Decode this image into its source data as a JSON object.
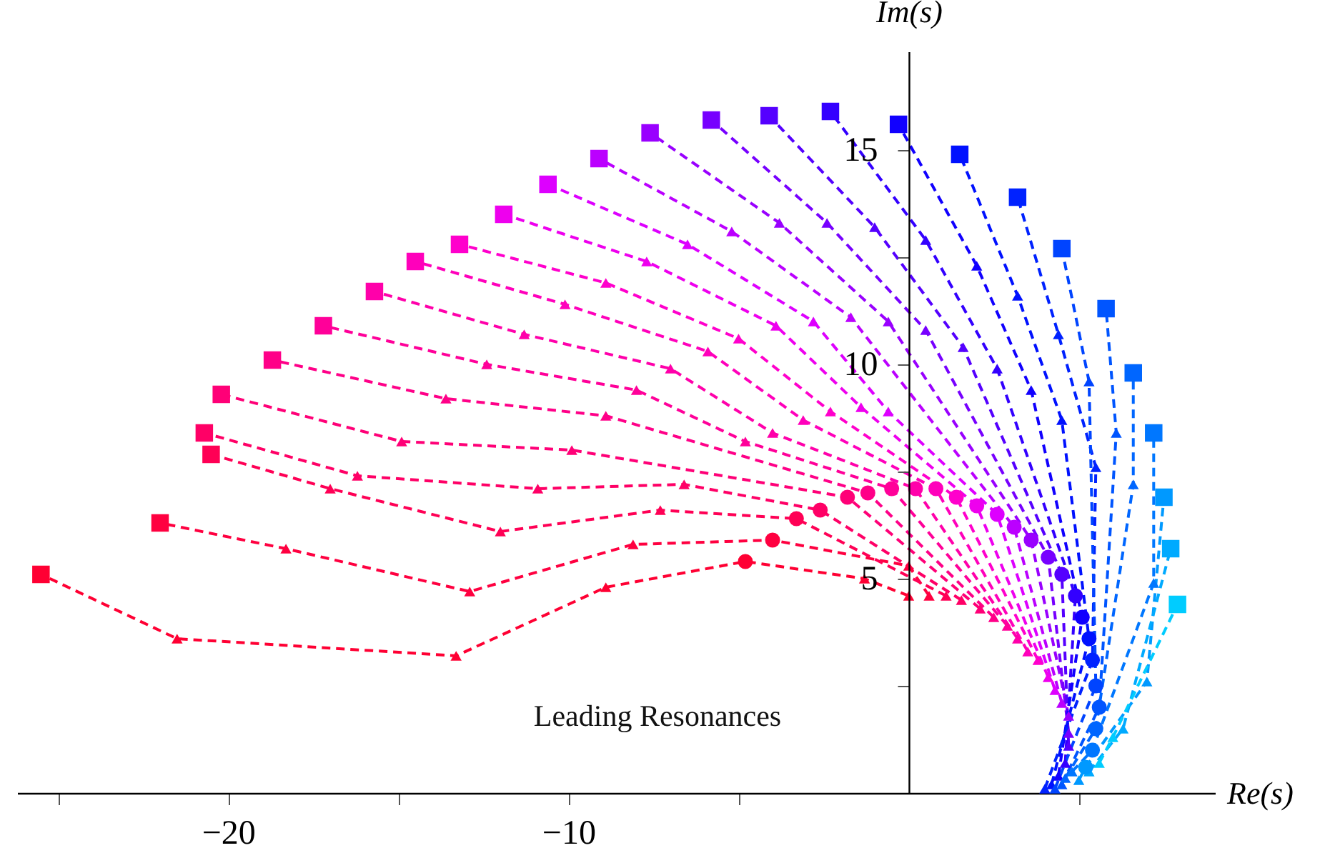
{
  "chart_data": {
    "type": "line",
    "xlabel": "Re(s)",
    "ylabel": "Im(s)",
    "line_style": "dashed",
    "annotations": [
      "Leading Resonances"
    ],
    "xlim": [
      -26.2,
      9.0
    ],
    "ylim": [
      0,
      17.3
    ],
    "xticks": [
      {
        "value": -25,
        "label": null
      },
      {
        "value": -20,
        "label": "−20"
      },
      {
        "value": -15,
        "label": null
      },
      {
        "value": -10,
        "label": "−10"
      },
      {
        "value": -5,
        "label": null
      },
      {
        "value": 5,
        "label": null
      }
    ],
    "yticks": [
      {
        "value": 2.5,
        "label": null
      },
      5,
      {
        "value": 7.5,
        "label": null
      },
      10,
      {
        "value": 12.5,
        "label": null
      },
      15
    ],
    "series": [
      {
        "color": "#ff0033",
        "x": [
          0,
          -1.3,
          -4.8,
          -8.9,
          -13.3,
          -21.5,
          -25.5
        ],
        "values": [
          4.6,
          5.0,
          5.4,
          4.8,
          3.2,
          3.6,
          5.1
        ]
      },
      {
        "color": "#ff0040",
        "x": [
          0.6,
          0,
          -4.0,
          -8.1,
          -12.9,
          -18.3,
          -22.0
        ],
        "values": [
          4.6,
          5.3,
          5.9,
          5.8,
          4.7,
          5.7,
          6.3
        ]
      },
      {
        "color": "#ff0055",
        "x": [
          1.1,
          -3.3,
          -7.3,
          -12.0,
          -17.0,
          -20.5
        ],
        "values": [
          4.6,
          6.4,
          6.6,
          6.1,
          7.1,
          7.9
        ]
      },
      {
        "color": "#ff0066",
        "x": [
          1.55,
          -2.6,
          -6.6,
          -10.9,
          -16.2,
          -20.7
        ],
        "values": [
          4.5,
          6.6,
          7.2,
          7.1,
          7.4,
          8.4
        ]
      },
      {
        "color": "#ff0077",
        "x": [
          2.1,
          -1.8,
          -9.9,
          -14.9,
          -20.2
        ],
        "values": [
          4.3,
          6.9,
          8.0,
          8.2,
          9.3
        ]
      },
      {
        "color": "#ff0088",
        "x": [
          2.5,
          -1.2,
          -8.9,
          -13.6,
          -18.7
        ],
        "values": [
          4.1,
          7.0,
          8.8,
          9.2,
          10.1
        ]
      },
      {
        "color": "#ff0099",
        "x": [
          2.9,
          -0.5,
          -4.8,
          -8.0,
          -12.4,
          -17.2
        ],
        "values": [
          3.9,
          7.1,
          8.2,
          9.4,
          10.0,
          10.9
        ]
      },
      {
        "color": "#ff00aa",
        "x": [
          3.2,
          0.2,
          -4.0,
          -7.0,
          -11.3,
          -15.7
        ],
        "values": [
          3.6,
          7.1,
          8.4,
          9.9,
          10.7,
          11.7
        ]
      },
      {
        "color": "#ff00bb",
        "x": [
          3.5,
          0.8,
          -3.1,
          -5.9,
          -10.1,
          -14.5
        ],
        "values": [
          3.3,
          7.1,
          8.7,
          10.3,
          11.4,
          12.4
        ]
      },
      {
        "color": "#ff00cc",
        "x": [
          3.8,
          1.4,
          -2.3,
          -5.0,
          -8.9,
          -13.2
        ],
        "values": [
          3.1,
          6.9,
          8.9,
          10.6,
          11.9,
          12.8
        ]
      },
      {
        "color": "#ee00ee",
        "x": [
          4.1,
          2.0,
          -1.4,
          -3.9,
          -7.7,
          -11.9
        ],
        "values": [
          2.7,
          6.7,
          9.0,
          10.9,
          12.4,
          13.5
        ]
      },
      {
        "color": "#dd00ff",
        "x": [
          4.3,
          2.6,
          -0.6,
          -2.8,
          -6.5,
          -10.6
        ],
        "values": [
          2.4,
          6.5,
          8.9,
          11.0,
          12.8,
          14.2
        ]
      },
      {
        "color": "#bb00ff",
        "x": [
          4.5,
          3.1,
          -1.7,
          -5.2,
          -9.1
        ],
        "values": [
          2.1,
          6.2,
          11.1,
          13.1,
          14.8
        ]
      },
      {
        "color": "#9900ff",
        "x": [
          4.7,
          3.6,
          -0.6,
          -3.8,
          -7.6
        ],
        "values": [
          1.8,
          5.9,
          11.0,
          13.3,
          15.4
        ]
      },
      {
        "color": "#7700ff",
        "x": [
          4.7,
          4.1,
          0.5,
          -2.4,
          -5.8
        ],
        "values": [
          1.4,
          5.5,
          10.8,
          13.3,
          15.7
        ]
      },
      {
        "color": "#5500ff",
        "x": [
          4.7,
          4.5,
          1.6,
          -1.0,
          -4.1
        ],
        "values": [
          1.1,
          5.1,
          10.4,
          13.2,
          15.8
        ]
      },
      {
        "color": "#3300ff",
        "x": [
          4.6,
          4.9,
          2.6,
          0.5,
          -2.3
        ],
        "values": [
          0.7,
          4.6,
          9.9,
          12.9,
          15.9
        ]
      },
      {
        "color": "#1100ff",
        "x": [
          4.4,
          5.1,
          3.6,
          2.0,
          -0.3
        ],
        "values": [
          0.4,
          4.1,
          9.4,
          12.3,
          15.6
        ]
      },
      {
        "color": "#0011ff",
        "x": [
          4.2,
          5.3,
          4.5,
          3.2,
          1.5
        ],
        "values": [
          0.2,
          3.6,
          8.7,
          11.6,
          14.9
        ]
      },
      {
        "color": "#0022ff",
        "x": [
          4.0,
          5.4,
          5.5,
          4.4,
          3.2
        ],
        "values": [
          0.1,
          3.1,
          7.6,
          10.7,
          13.9
        ]
      },
      {
        "color": "#0044ff",
        "x": [
          4.3,
          5.5,
          5.3,
          4.5
        ],
        "values": [
          0.1,
          2.5,
          9.6,
          12.7
        ]
      },
      {
        "color": "#0055ff",
        "x": [
          4.5,
          5.6,
          6.1,
          5.8
        ],
        "values": [
          0.2,
          2.0,
          8.4,
          11.3
        ]
      },
      {
        "color": "#0066ff",
        "x": [
          4.6,
          5.5,
          6.6,
          6.6
        ],
        "values": [
          0.35,
          1.5,
          7.2,
          9.8
        ]
      },
      {
        "color": "#0077ff",
        "x": [
          4.8,
          5.4,
          7.2,
          7.2
        ],
        "values": [
          0.5,
          1.0,
          4.9,
          8.4
        ]
      },
      {
        "color": "#0099ff",
        "x": [
          5.0,
          5.2,
          7.0,
          7.5
        ],
        "values": [
          0.3,
          0.6,
          2.6,
          6.9
        ]
      },
      {
        "color": "#00aaff",
        "x": [
          5.3,
          6.3,
          7.7
        ],
        "values": [
          0.5,
          1.5,
          5.7
        ]
      },
      {
        "color": "#00ccff",
        "x": [
          5.6,
          6.0,
          7.9
        ],
        "values": [
          0.7,
          1.3,
          4.4
        ]
      },
      {
        "type": "scatter",
        "marker": "triangle",
        "x": [
          0,
          -1.3,
          -8.9,
          -13.3,
          -21.5,
          0.6,
          0,
          -8.1,
          -12.9,
          -18.3,
          1.1,
          -7.3,
          -12.0,
          -17.0,
          1.55,
          -6.6,
          -10.9,
          -16.2,
          2.1,
          -9.9,
          -14.9,
          2.5,
          -8.9,
          -13.6,
          2.9,
          -4.8,
          -8.0,
          -12.4,
          3.2,
          -4.0,
          -7.0,
          -11.3,
          3.5,
          -3.1,
          -5.9,
          -10.1,
          3.8,
          -2.3,
          -5.0,
          -8.9,
          4.1,
          -1.4,
          -3.9,
          -7.7,
          4.3,
          -0.6,
          -2.8,
          -6.5,
          4.5,
          -1.7,
          -5.2,
          4.7,
          -0.6,
          -3.8,
          4.7,
          0.5,
          -2.4,
          4.7,
          1.6,
          -1.0,
          4.6,
          2.6,
          0.5,
          4.4,
          3.6,
          2.0,
          4.2,
          4.5,
          3.2,
          4.0,
          5.5,
          4.4,
          4.3,
          5.3,
          4.5,
          6.1,
          4.6,
          6.6,
          4.8,
          7.2,
          5.0,
          7.0,
          5.3,
          6.3,
          5.6,
          6.0
        ],
        "values": [
          4.6,
          5.0,
          4.8,
          3.2,
          3.6,
          4.6,
          5.3,
          5.8,
          4.7,
          5.7,
          4.6,
          6.6,
          6.1,
          7.1,
          4.5,
          7.2,
          7.1,
          7.4,
          4.3,
          8.0,
          8.2,
          4.1,
          8.8,
          9.2,
          3.9,
          8.2,
          9.4,
          10.0,
          3.6,
          8.4,
          9.9,
          10.7,
          3.3,
          8.7,
          10.3,
          11.4,
          3.1,
          8.9,
          10.6,
          11.9,
          2.7,
          9.0,
          10.9,
          12.4,
          2.4,
          8.9,
          11.0,
          12.8,
          2.1,
          11.1,
          13.1,
          1.8,
          11.0,
          13.3,
          1.4,
          10.8,
          13.3,
          1.1,
          10.4,
          13.2,
          0.7,
          9.9,
          12.9,
          0.4,
          9.4,
          12.3,
          0.2,
          8.7,
          11.6,
          0.1,
          7.6,
          10.7,
          0.1,
          9.6,
          0.2,
          8.4,
          0.35,
          7.2,
          0.5,
          4.9,
          0.3,
          2.6,
          0.5,
          1.5,
          0.7,
          1.3
        ],
        "colors": [
          "#ff0033",
          "#ff0033",
          "#ff0033",
          "#ff0033",
          "#ff0033",
          "#ff0040",
          "#ff0040",
          "#ff0040",
          "#ff0040",
          "#ff0040",
          "#ff0055",
          "#ff0055",
          "#ff0055",
          "#ff0055",
          "#ff0066",
          "#ff0066",
          "#ff0066",
          "#ff0066",
          "#ff0077",
          "#ff0077",
          "#ff0077",
          "#ff0088",
          "#ff0088",
          "#ff0088",
          "#ff0099",
          "#ff0099",
          "#ff0099",
          "#ff0099",
          "#ff00aa",
          "#ff00aa",
          "#ff00aa",
          "#ff00aa",
          "#ff00bb",
          "#ff00bb",
          "#ff00bb",
          "#ff00bb",
          "#ff00cc",
          "#ff00cc",
          "#ff00cc",
          "#ff00cc",
          "#ee00ee",
          "#ee00ee",
          "#ee00ee",
          "#ee00ee",
          "#dd00ff",
          "#dd00ff",
          "#dd00ff",
          "#dd00ff",
          "#bb00ff",
          "#bb00ff",
          "#bb00ff",
          "#9900ff",
          "#9900ff",
          "#9900ff",
          "#7700ff",
          "#7700ff",
          "#7700ff",
          "#5500ff",
          "#5500ff",
          "#5500ff",
          "#3300ff",
          "#3300ff",
          "#3300ff",
          "#1100ff",
          "#1100ff",
          "#1100ff",
          "#0011ff",
          "#0011ff",
          "#0011ff",
          "#0022ff",
          "#0022ff",
          "#0022ff",
          "#0044ff",
          "#0044ff",
          "#0055ff",
          "#0055ff",
          "#0066ff",
          "#0066ff",
          "#0077ff",
          "#0077ff",
          "#0099ff",
          "#0099ff",
          "#00aaff",
          "#00aaff",
          "#00ccff",
          "#00ccff"
        ]
      },
      {
        "type": "scatter",
        "marker": "circle",
        "x": [
          -4.8,
          -4.0,
          -3.3,
          -2.6,
          -1.8,
          -1.2,
          -0.5,
          0.2,
          0.8,
          1.4,
          2.0,
          2.6,
          3.1,
          3.6,
          4.1,
          4.5,
          4.9,
          5.1,
          5.3,
          5.4,
          5.5,
          5.6,
          5.5,
          5.4,
          5.2
        ],
        "values": [
          5.4,
          5.9,
          6.4,
          6.6,
          6.9,
          7.0,
          7.1,
          7.1,
          7.1,
          6.9,
          6.7,
          6.5,
          6.2,
          5.9,
          5.5,
          5.1,
          4.6,
          4.1,
          3.6,
          3.1,
          2.5,
          2.0,
          1.5,
          1.0,
          0.6
        ],
        "colors": [
          "#ff0033",
          "#ff0040",
          "#ff0055",
          "#ff0066",
          "#ff0077",
          "#ff0088",
          "#ff0099",
          "#ff00aa",
          "#ff00bb",
          "#ff00cc",
          "#ee00ee",
          "#dd00ff",
          "#bb00ff",
          "#9900ff",
          "#7700ff",
          "#5500ff",
          "#3300ff",
          "#1100ff",
          "#0011ff",
          "#0022ff",
          "#0044ff",
          "#0055ff",
          "#0066ff",
          "#0077ff",
          "#0099ff"
        ]
      },
      {
        "type": "scatter",
        "marker": "square",
        "x": [
          -25.5,
          -22.0,
          -20.5,
          -20.7,
          -20.2,
          -18.7,
          -17.2,
          -15.7,
          -14.5,
          -13.2,
          -11.9,
          -10.6,
          -9.1,
          -7.6,
          -5.8,
          -4.1,
          -2.3,
          -0.3,
          1.5,
          3.2,
          4.5,
          5.8,
          6.6,
          7.2,
          7.5,
          7.7,
          7.9
        ],
        "values": [
          5.1,
          6.3,
          7.9,
          8.4,
          9.3,
          10.1,
          10.9,
          11.7,
          12.4,
          12.8,
          13.5,
          14.2,
          14.8,
          15.4,
          15.7,
          15.8,
          15.9,
          15.6,
          14.9,
          13.9,
          12.7,
          11.3,
          9.8,
          8.4,
          6.9,
          5.7,
          4.4
        ],
        "colors": [
          "#ff0033",
          "#ff0040",
          "#ff0055",
          "#ff0066",
          "#ff0077",
          "#ff0088",
          "#ff0099",
          "#ff00aa",
          "#ff00bb",
          "#ff00cc",
          "#ee00ee",
          "#dd00ff",
          "#bb00ff",
          "#9900ff",
          "#7700ff",
          "#5500ff",
          "#3300ff",
          "#1100ff",
          "#0011ff",
          "#0022ff",
          "#0044ff",
          "#0055ff",
          "#0066ff",
          "#0077ff",
          "#0099ff",
          "#00aaff",
          "#00ccff"
        ]
      }
    ]
  }
}
